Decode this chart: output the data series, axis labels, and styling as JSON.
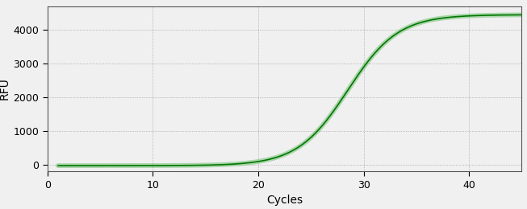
{
  "title": "",
  "xlabel": "Cycles",
  "ylabel": "RFU",
  "xlim": [
    0,
    45
  ],
  "ylim": [
    -200,
    4700
  ],
  "xticks": [
    0,
    10,
    20,
    30,
    40
  ],
  "yticks": [
    0,
    1000,
    2000,
    3000,
    4000
  ],
  "line_color": "#007700",
  "line_color_light": "#66bb66",
  "line_width": 1.2,
  "background_color": "#f0f0f0",
  "plot_bg_color": "#f0f0f0",
  "grid_color": "#999999",
  "sigmoid_L": 4480,
  "sigmoid_k": 0.42,
  "sigmoid_x0": 28.5,
  "x_start": 1,
  "x_end": 45,
  "tick_label_color": "#000000",
  "axis_label_color": "#000000",
  "figsize": [
    6.53,
    2.6
  ],
  "dpi": 100
}
